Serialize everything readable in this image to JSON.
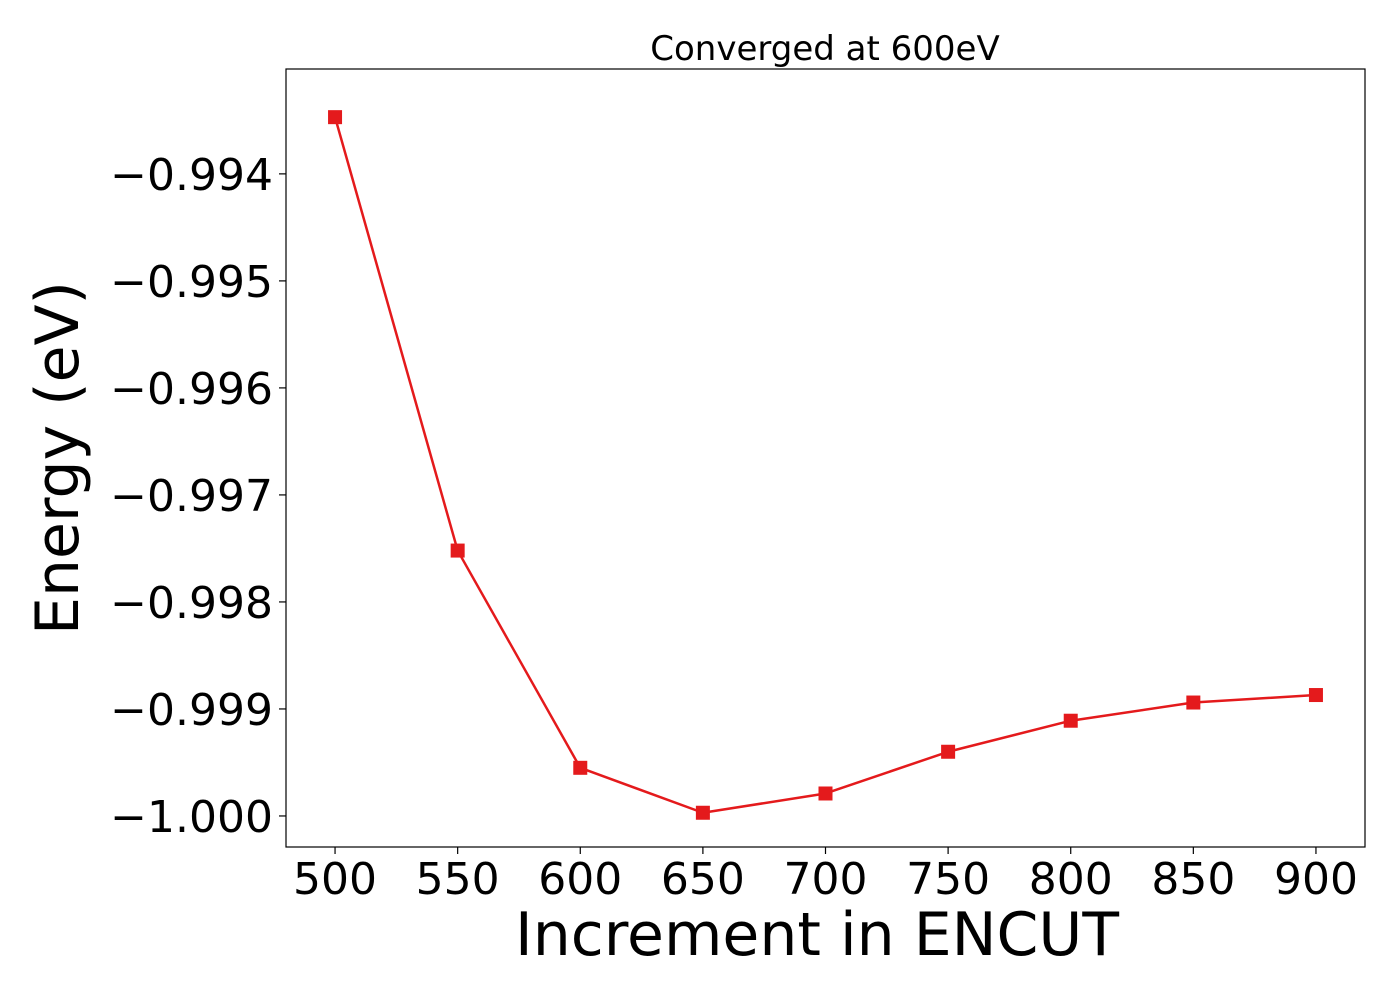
{
  "chart_data": {
    "type": "line",
    "title": "Converged at 600eV",
    "xlabel": "Increment in ENCUT",
    "ylabel": "Energy (eV)",
    "x": [
      500,
      550,
      600,
      650,
      700,
      750,
      800,
      850,
      900
    ],
    "series": [
      {
        "values": [
          -0.99347,
          -0.99752,
          -0.99955,
          -0.99997,
          -0.99979,
          -0.9994,
          -0.99911,
          -0.99894,
          -0.99887
        ],
        "color": "#e41a1c",
        "marker": "square"
      }
    ],
    "xticks": [
      500,
      550,
      600,
      650,
      700,
      750,
      800,
      850,
      900
    ],
    "xtick_labels": [
      "500",
      "550",
      "600",
      "650",
      "700",
      "750",
      "800",
      "850",
      "900"
    ],
    "yticks": [
      -0.994,
      -0.995,
      -0.996,
      -0.997,
      -0.998,
      -0.999,
      -1.0
    ],
    "ytick_labels": [
      "−0.994",
      "−0.995",
      "−0.996",
      "−0.997",
      "−0.998",
      "−0.999",
      "−1.000"
    ],
    "xlim": [
      480,
      920
    ],
    "ylim": [
      -1.00029,
      -0.99302
    ],
    "grid": false,
    "legend": "none"
  }
}
